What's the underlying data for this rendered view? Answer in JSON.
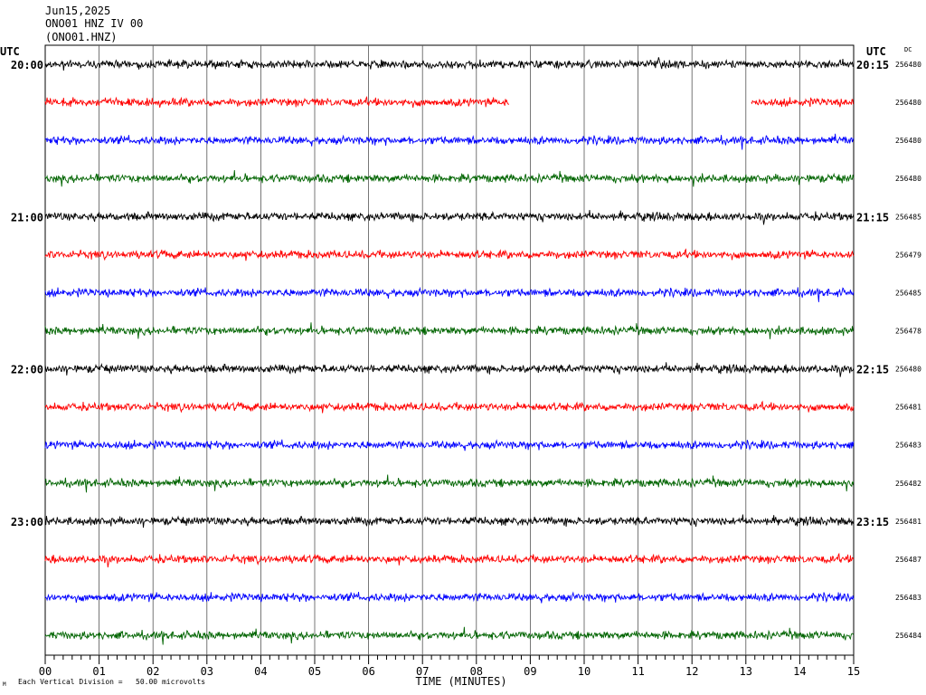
{
  "header": {
    "date": "Jun15,2025",
    "station": "ONO01 HNZ IV 00",
    "channel": "(ONO01.HNZ)"
  },
  "footer": {
    "marker": "M",
    "scale_text": "Each Vertical Division =   50.00 microvolts"
  },
  "colors": {
    "black": "#000000",
    "red": "#ff0000",
    "blue": "#0000ff",
    "green": "#006400",
    "grid": "#000000"
  },
  "chart_data": {
    "type": "line",
    "title": "",
    "xlabel": "TIME (MINUTES)",
    "left_axis_label": "UTC",
    "right_axis_label": "UTC",
    "dc_label": "DC",
    "x_ticks": [
      "00",
      "01",
      "02",
      "03",
      "04",
      "05",
      "06",
      "07",
      "08",
      "09",
      "10",
      "11",
      "12",
      "13",
      "14",
      "15"
    ],
    "xlim": [
      0,
      15
    ],
    "grid": true,
    "trace_colors": [
      "#000000",
      "#ff0000",
      "#0000ff",
      "#006400"
    ],
    "hour_labels_left": [
      "20:00",
      "21:00",
      "22:00",
      "23:00"
    ],
    "hour_labels_right": [
      "20:15",
      "21:15",
      "22:15",
      "23:15"
    ],
    "traces": [
      {
        "row": 0,
        "dc": "256480"
      },
      {
        "row": 1,
        "dc": "256480",
        "gap_minutes": [
          8.6,
          13.1
        ]
      },
      {
        "row": 2,
        "dc": "256480"
      },
      {
        "row": 3,
        "dc": "256480"
      },
      {
        "row": 4,
        "dc": "256485"
      },
      {
        "row": 5,
        "dc": "256479"
      },
      {
        "row": 6,
        "dc": "256485"
      },
      {
        "row": 7,
        "dc": "256478"
      },
      {
        "row": 8,
        "dc": "256480"
      },
      {
        "row": 9,
        "dc": "256481"
      },
      {
        "row": 10,
        "dc": "256483"
      },
      {
        "row": 11,
        "dc": "256482"
      },
      {
        "row": 12,
        "dc": "256481"
      },
      {
        "row": 13,
        "dc": "256487"
      },
      {
        "row": 14,
        "dc": "256483"
      },
      {
        "row": 15,
        "dc": "256484"
      }
    ]
  }
}
